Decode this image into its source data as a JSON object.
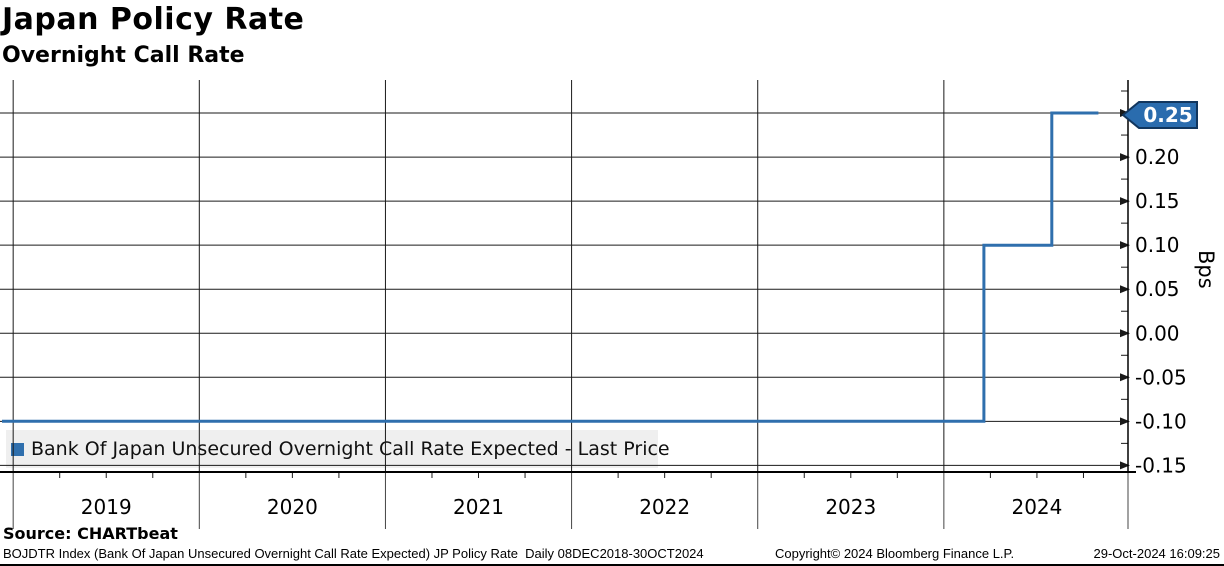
{
  "header": {
    "title": "Japan Policy Rate",
    "subtitle": "Overnight Call Rate"
  },
  "legend": {
    "marker_color": "#2f6fad",
    "label": "Bank Of Japan Unsecured Overnight Call Rate Expected - Last Price"
  },
  "source": {
    "label": "Source: CHARTbeat"
  },
  "footer": {
    "description": "BOJDTR Index (Bank Of Japan Unsecured Overnight Call Rate Expected) JP Policy Rate  Daily 08DEC2018-30OCT2024",
    "copyright": "Copyright© 2024 Bloomberg Finance L.P.",
    "timestamp": "29-Oct-2024 16:09:25"
  },
  "chart_data": {
    "type": "line",
    "line_style": "step",
    "title": "Japan Policy Rate",
    "subtitle": "Overnight Call Rate",
    "xlabel": "",
    "ylabel": "Bps",
    "frequency": "Daily",
    "x_range_label": "08DEC2018-30OCT2024",
    "grid": true,
    "legend_position": "bottom-left",
    "x_axis": {
      "min": 2018.94,
      "max": 2025.0,
      "years": [
        2019,
        2020,
        2021,
        2022,
        2023,
        2024
      ],
      "minor_tick_interval_years": 0.25
    },
    "y_axis": {
      "min": -0.1575,
      "max": 0.2875,
      "tick_step": 0.05,
      "minor_tick_step": 0.025,
      "ticks": [
        {
          "v": 0.25,
          "label": "0.25"
        },
        {
          "v": 0.2,
          "label": "0.20"
        },
        {
          "v": 0.15,
          "label": "0.15"
        },
        {
          "v": 0.1,
          "label": "0.10"
        },
        {
          "v": 0.05,
          "label": "0.05"
        },
        {
          "v": 0.0,
          "label": "0.00"
        },
        {
          "v": -0.05,
          "label": "-0.05"
        },
        {
          "v": -0.1,
          "label": "-0.10"
        },
        {
          "v": -0.15,
          "label": "-0.15"
        }
      ]
    },
    "series": [
      {
        "name": "Bank Of Japan Unsecured Overnight Call Rate Expected - Last Price",
        "color": "#2f6fad",
        "last_price": "0.25",
        "points": [
          {
            "date": "08DEC2018",
            "x": 2018.94,
            "y": -0.1
          },
          {
            "date": "19MAR2024",
            "x": 2024.215,
            "y": -0.1
          },
          {
            "date": "19MAR2024",
            "x": 2024.215,
            "y": 0.1
          },
          {
            "date": "31JUL2024",
            "x": 2024.58,
            "y": 0.1
          },
          {
            "date": "31JUL2024",
            "x": 2024.58,
            "y": 0.25
          },
          {
            "date": "30OCT2024",
            "x": 2024.83,
            "y": 0.25
          }
        ]
      }
    ],
    "price_tag": {
      "label": "0.25",
      "value": 0.25,
      "fill": "#2a6cae",
      "border": "#11365e",
      "text_color": "#ffffff"
    },
    "colors": {
      "grid": "#1a1a1a",
      "axis": "#000000",
      "year_band_separator": "#444444"
    }
  }
}
